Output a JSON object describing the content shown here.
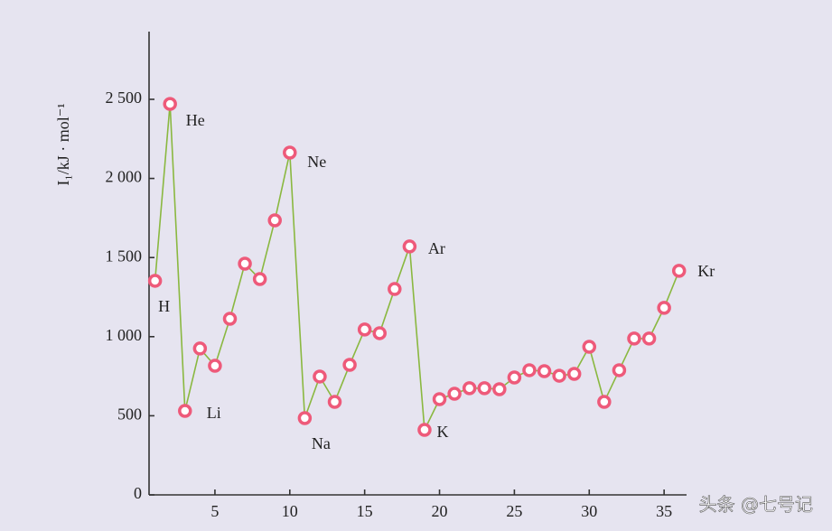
{
  "chart_data": {
    "type": "line",
    "y_label": "I₁/kJ · mol⁻¹",
    "x": [
      1,
      2,
      3,
      4,
      5,
      6,
      7,
      8,
      9,
      10,
      11,
      12,
      13,
      14,
      15,
      16,
      17,
      18,
      19,
      20,
      21,
      22,
      23,
      24,
      25,
      26,
      27,
      28,
      29,
      30,
      31,
      32,
      33,
      34,
      35,
      36
    ],
    "series": [
      {
        "name": "I1",
        "color": "#8ab840",
        "marker_color": "#ee5a7a",
        "values": [
          1353,
          2471,
          531,
          925,
          816,
          1113,
          1461,
          1364,
          1735,
          2163,
          485,
          748,
          588,
          822,
          1045,
          1022,
          1301,
          1570,
          411,
          605,
          639,
          674,
          674,
          668,
          742,
          788,
          782,
          753,
          765,
          936,
          588,
          788,
          988,
          988,
          1182,
          1416
        ]
      }
    ],
    "xlim": [
      0.6,
      36.5
    ],
    "ylim": [
      0,
      2928
    ],
    "xticks": [
      5,
      10,
      15,
      20,
      25,
      30,
      35
    ],
    "yticks": [
      0,
      {
        "value": 500,
        "label": "500"
      },
      {
        "value": 1000,
        "label": "1 000"
      },
      {
        "value": 1500,
        "label": "1 500"
      },
      {
        "value": 2000,
        "label": "2 000"
      },
      {
        "value": 2500,
        "label": "2 500"
      }
    ],
    "annotations": [
      {
        "text": "H",
        "index": 0
      },
      {
        "text": "He",
        "index": 1
      },
      {
        "text": "Li",
        "index": 2
      },
      {
        "text": "Ne",
        "index": 9
      },
      {
        "text": "Na",
        "index": 10
      },
      {
        "text": "Ar",
        "index": 17
      },
      {
        "text": "K",
        "index": 18
      },
      {
        "text": "Kr",
        "index": 35
      }
    ],
    "watermark": "头条 @七号记"
  }
}
